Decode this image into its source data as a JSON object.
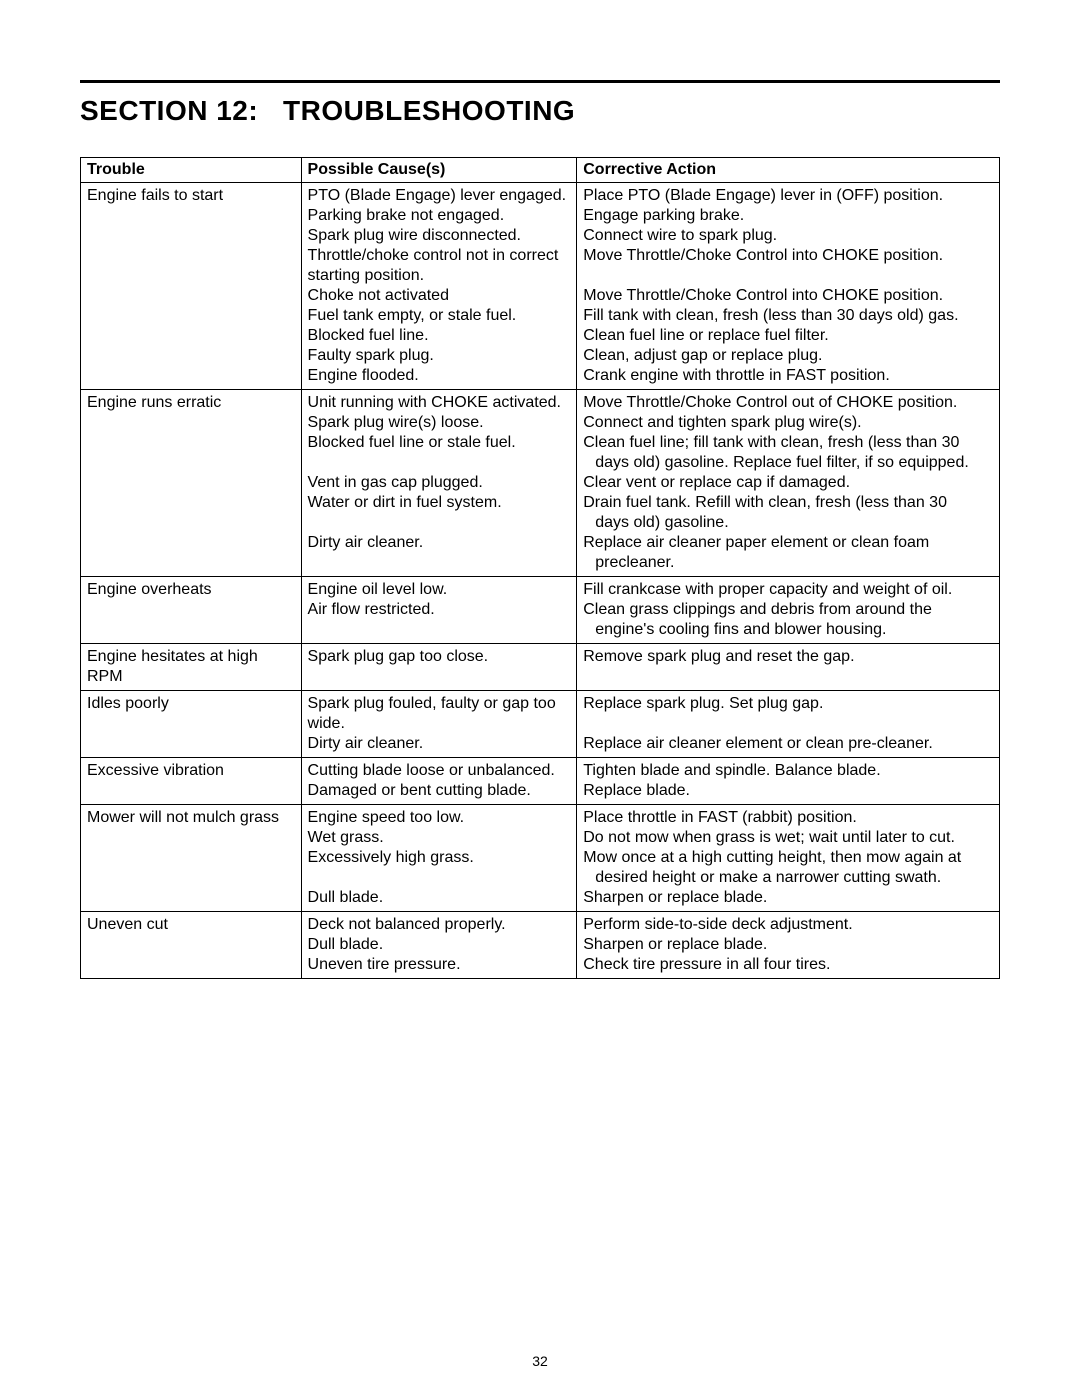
{
  "section": {
    "label": "SECTION 12:",
    "name": "TROUBLESHOOTING"
  },
  "table": {
    "headers": {
      "trouble": "Trouble",
      "cause": "Possible Cause(s)",
      "action": "Corrective Action"
    },
    "rows": [
      {
        "trouble": "Engine fails to start",
        "causes": [
          "PTO (Blade Engage) lever engaged.",
          "Parking brake not engaged.",
          "Spark plug wire disconnected.",
          "Throttle/choke control not in correct starting position.",
          "Choke not activated",
          "Fuel tank empty, or stale fuel.",
          "Blocked fuel line.",
          "Faulty spark plug.",
          "Engine flooded."
        ],
        "actions": [
          "Place PTO (Blade Engage) lever in (OFF) position.",
          "Engage parking brake.",
          "Connect wire to spark plug.",
          "Move Throttle/Choke Control into CHOKE position.",
          "",
          "Move Throttle/Choke Control into CHOKE position.",
          "Fill tank with clean, fresh (less than 30 days old) gas.",
          "Clean fuel line or replace fuel filter.",
          "Clean, adjust gap or replace plug.",
          "Crank engine with throttle in FAST position."
        ]
      },
      {
        "trouble": "Engine runs erratic",
        "causes": [
          "Unit running with CHOKE activated.",
          "Spark plug wire(s) loose.",
          "Blocked fuel line or stale fuel.",
          "",
          "Vent in gas cap plugged.",
          "Water or dirt in fuel system.",
          "",
          "Dirty air cleaner."
        ],
        "actions": [
          "Move Throttle/Choke Control out of CHOKE position.",
          "Connect and tighten spark plug wire(s).",
          "Clean fuel line; fill tank with clean, fresh (less than 30",
          "__INDENT__days old) gasoline. Replace fuel filter, if so equipped.",
          "Clear vent or replace cap if damaged.",
          "Drain fuel tank. Refill with clean, fresh (less than 30",
          "__INDENT__days old) gasoline.",
          "Replace air cleaner paper element or clean foam",
          "__INDENT__precleaner."
        ]
      },
      {
        "trouble": "Engine overheats",
        "causes": [
          "Engine oil level low.",
          "Air flow restricted."
        ],
        "actions": [
          "Fill crankcase with proper capacity and weight of oil.",
          "Clean grass clippings and debris from around the",
          "__INDENT__engine's cooling fins and blower housing."
        ]
      },
      {
        "trouble": "Engine hesitates at high RPM",
        "causes": [
          "Spark plug gap too close."
        ],
        "actions": [
          "Remove spark plug and reset the gap."
        ]
      },
      {
        "trouble": "Idles poorly",
        "causes": [
          "Spark plug fouled, faulty or gap too wide.",
          "Dirty air cleaner."
        ],
        "actions": [
          "Replace spark plug. Set plug gap.",
          "",
          "Replace air cleaner element or clean pre-cleaner."
        ]
      },
      {
        "trouble": "Excessive vibration",
        "causes": [
          "Cutting blade loose or unbalanced.",
          "Damaged or bent cutting blade."
        ],
        "actions": [
          "Tighten blade and spindle. Balance blade.",
          "Replace blade."
        ]
      },
      {
        "trouble": "Mower will not mulch grass",
        "causes": [
          "Engine speed too low.",
          "Wet grass.",
          "Excessively high grass.",
          "",
          "Dull blade."
        ],
        "actions": [
          "Place throttle in FAST (rabbit) position.",
          "Do not mow when grass is wet; wait until later to cut.",
          "Mow once at a high cutting height, then mow again at",
          "__INDENT__desired height or make a narrower cutting swath.",
          "Sharpen or replace blade."
        ]
      },
      {
        "trouble": "Uneven cut",
        "causes": [
          "Deck not balanced properly.",
          "Dull blade.",
          "Uneven tire pressure."
        ],
        "actions": [
          "Perform side-to-side deck adjustment.",
          "Sharpen or replace blade.",
          "Check tire pressure in all four tires."
        ]
      }
    ]
  },
  "pageNumber": "32",
  "colors": {
    "background": "#ffffff",
    "text": "#000000",
    "border": "#000000"
  },
  "fonts": {
    "heading_size": 28,
    "body_size": 16,
    "page_number_size": 14
  }
}
